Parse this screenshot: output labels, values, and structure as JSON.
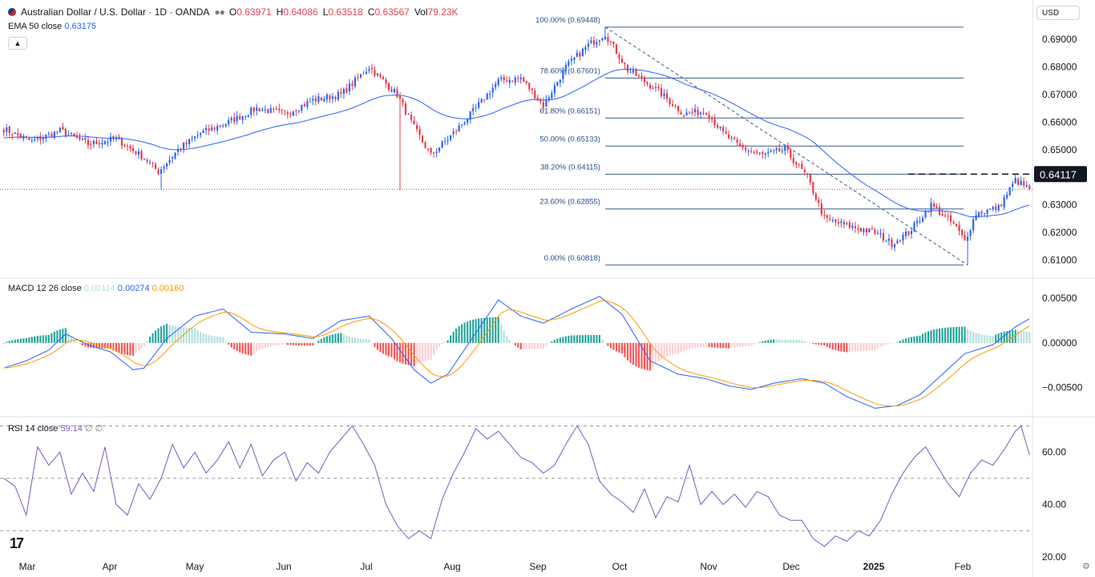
{
  "header": {
    "symbol": "Australian Dollar / U.S. Dollar · 1D · OANDA",
    "o_label": "O",
    "o": "0.63971",
    "h_label": "H",
    "h": "0.64086",
    "l_label": "L",
    "l": "0.63518",
    "c_label": "C",
    "c": "0.63567",
    "vol_label": "Vol",
    "vol": "79.23K"
  },
  "ema_legend": {
    "label": "EMA 50 close",
    "value": "0.63175"
  },
  "macd_legend": {
    "label": "MACD 12 26 close",
    "hist": "0.00114",
    "macd": "0.00274",
    "signal": "0.00160"
  },
  "rsi_legend": {
    "label": "RSI 14 close",
    "value": "59.14",
    "flags": "∅ ∅"
  },
  "currency_button": "USD",
  "price_tag": "0.64117",
  "colors": {
    "up": "#2962ff",
    "down": "#f23645",
    "ema": "#2962ff",
    "macd": "#2962ff",
    "signal": "#ff9800",
    "hist_up_strong": "#26a69a",
    "hist_up_weak": "#b2dfdb",
    "hist_down_strong": "#ff5252",
    "hist_down_weak": "#ffcdd2",
    "rsi": "#7e57c2"
  },
  "chart_data": {
    "type": "line",
    "x_axis_labels": [
      "Mar",
      "Apr",
      "May",
      "Jun",
      "Jul",
      "Aug",
      "Sep",
      "Oct",
      "Nov",
      "Dec",
      "2025",
      "Feb"
    ],
    "price_panel": {
      "y_ticks": [
        "0.69000",
        "0.68000",
        "0.67000",
        "0.66000",
        "0.65000",
        "0.64000",
        "0.63000",
        "0.62000",
        "0.61000"
      ],
      "ylim": [
        0.6055,
        0.6985
      ],
      "close_anchors": [
        [
          0,
          0.6575
        ],
        [
          10,
          0.653
        ],
        [
          20,
          0.657
        ],
        [
          30,
          0.652
        ],
        [
          40,
          0.654
        ],
        [
          50,
          0.647
        ],
        [
          55,
          0.642
        ],
        [
          62,
          0.65
        ],
        [
          70,
          0.656
        ],
        [
          80,
          0.66
        ],
        [
          90,
          0.665
        ],
        [
          100,
          0.663
        ],
        [
          110,
          0.668
        ],
        [
          120,
          0.67
        ],
        [
          130,
          0.68
        ],
        [
          140,
          0.67
        ],
        [
          146,
          0.658
        ],
        [
          152,
          0.648
        ],
        [
          160,
          0.656
        ],
        [
          168,
          0.665
        ],
        [
          176,
          0.675
        ],
        [
          184,
          0.676
        ],
        [
          192,
          0.666
        ],
        [
          200,
          0.68
        ],
        [
          208,
          0.688
        ],
        [
          214,
          0.692
        ],
        [
          222,
          0.679
        ],
        [
          232,
          0.672
        ],
        [
          242,
          0.663
        ],
        [
          250,
          0.664
        ],
        [
          256,
          0.656
        ],
        [
          262,
          0.651
        ],
        [
          270,
          0.648
        ],
        [
          278,
          0.65
        ],
        [
          286,
          0.64
        ],
        [
          292,
          0.625
        ],
        [
          300,
          0.6225
        ],
        [
          310,
          0.62
        ],
        [
          316,
          0.616
        ],
        [
          322,
          0.62
        ],
        [
          330,
          0.63
        ],
        [
          338,
          0.623
        ],
        [
          342,
          0.617
        ],
        [
          346,
          0.627
        ],
        [
          354,
          0.629
        ],
        [
          360,
          0.639
        ],
        [
          365,
          0.6357
        ]
      ],
      "ema50": {
        "name": "EMA 50 close",
        "last": 0.63175
      },
      "fibonacci": [
        {
          "label": "100.00%",
          "value": "(0.69448)",
          "price": 0.69448
        },
        {
          "label": "78.60%",
          "value": "(0.67601)",
          "price": 0.67601
        },
        {
          "label": "61.80%",
          "value": "(0.66151)",
          "price": 0.66151
        },
        {
          "label": "50.00%",
          "value": "(0.65133)",
          "price": 0.65133
        },
        {
          "label": "38.20%",
          "value": "(0.64115)",
          "price": 0.64115
        },
        {
          "label": "23.60%",
          "value": "(0.62855)",
          "price": 0.62855
        },
        {
          "label": "0.00%",
          "value": "(0.60818)",
          "price": 0.60818
        }
      ],
      "resistance": 0.64117,
      "current_price": 0.63567
    },
    "macd_panel": {
      "y_ticks": [
        "0.00500",
        "0.00000",
        "−0.00500"
      ],
      "ylim": [
        -0.0078,
        0.0068
      ],
      "macd_anchors": [
        [
          0,
          -0.0028
        ],
        [
          8,
          -0.002
        ],
        [
          16,
          -0.0008
        ],
        [
          22,
          0.001
        ],
        [
          30,
          -0.0002
        ],
        [
          38,
          -0.001
        ],
        [
          46,
          -0.003
        ],
        [
          50,
          -0.0028
        ],
        [
          58,
          0.0005
        ],
        [
          68,
          0.003
        ],
        [
          78,
          0.0038
        ],
        [
          88,
          0.0012
        ],
        [
          100,
          0.001
        ],
        [
          110,
          0.0005
        ],
        [
          120,
          0.0025
        ],
        [
          130,
          0.003
        ],
        [
          138,
          0.0005
        ],
        [
          146,
          -0.003
        ],
        [
          152,
          -0.0045
        ],
        [
          158,
          -0.0035
        ],
        [
          166,
          0.0002
        ],
        [
          176,
          0.0048
        ],
        [
          184,
          0.003
        ],
        [
          192,
          0.0022
        ],
        [
          202,
          0.0038
        ],
        [
          212,
          0.0052
        ],
        [
          220,
          0.0032
        ],
        [
          230,
          -0.002
        ],
        [
          240,
          -0.0035
        ],
        [
          250,
          -0.004
        ],
        [
          258,
          -0.0048
        ],
        [
          266,
          -0.0052
        ],
        [
          274,
          -0.0045
        ],
        [
          284,
          -0.004
        ],
        [
          292,
          -0.0045
        ],
        [
          300,
          -0.006
        ],
        [
          310,
          -0.0073
        ],
        [
          318,
          -0.007
        ],
        [
          326,
          -0.0058
        ],
        [
          334,
          -0.0035
        ],
        [
          342,
          -0.0012
        ],
        [
          352,
          -0.0002
        ],
        [
          360,
          0.0018
        ],
        [
          365,
          0.0027
        ]
      ]
    },
    "rsi_panel": {
      "y_ticks": [
        "60.00",
        "40.00",
        "20.00"
      ],
      "ylim": [
        20,
        72
      ],
      "levels": [
        70,
        50,
        30
      ],
      "rsi_anchors": [
        [
          0,
          50
        ],
        [
          4,
          47
        ],
        [
          8,
          36
        ],
        [
          12,
          62
        ],
        [
          16,
          55
        ],
        [
          20,
          60
        ],
        [
          24,
          44
        ],
        [
          28,
          52
        ],
        [
          32,
          45
        ],
        [
          36,
          62
        ],
        [
          40,
          40
        ],
        [
          44,
          36
        ],
        [
          48,
          48
        ],
        [
          52,
          42
        ],
        [
          56,
          50
        ],
        [
          60,
          63
        ],
        [
          64,
          54
        ],
        [
          68,
          60
        ],
        [
          72,
          52
        ],
        [
          76,
          57
        ],
        [
          80,
          64
        ],
        [
          84,
          54
        ],
        [
          88,
          63
        ],
        [
          92,
          51
        ],
        [
          96,
          57
        ],
        [
          100,
          60
        ],
        [
          104,
          49
        ],
        [
          108,
          56
        ],
        [
          112,
          52
        ],
        [
          116,
          60
        ],
        [
          120,
          65
        ],
        [
          124,
          70
        ],
        [
          128,
          63
        ],
        [
          132,
          55
        ],
        [
          136,
          40
        ],
        [
          140,
          32
        ],
        [
          144,
          27
        ],
        [
          148,
          30
        ],
        [
          152,
          27
        ],
        [
          156,
          42
        ],
        [
          160,
          52
        ],
        [
          164,
          60
        ],
        [
          168,
          69
        ],
        [
          172,
          65
        ],
        [
          176,
          68
        ],
        [
          180,
          63
        ],
        [
          184,
          58
        ],
        [
          188,
          56
        ],
        [
          192,
          52
        ],
        [
          196,
          55
        ],
        [
          200,
          63
        ],
        [
          204,
          70
        ],
        [
          208,
          63
        ],
        [
          212,
          49
        ],
        [
          216,
          44
        ],
        [
          220,
          41
        ],
        [
          224,
          37
        ],
        [
          228,
          46
        ],
        [
          232,
          35
        ],
        [
          236,
          43
        ],
        [
          240,
          41
        ],
        [
          244,
          55
        ],
        [
          248,
          40
        ],
        [
          252,
          45
        ],
        [
          256,
          40
        ],
        [
          260,
          44
        ],
        [
          264,
          39
        ],
        [
          268,
          45
        ],
        [
          272,
          43
        ],
        [
          276,
          36
        ],
        [
          280,
          34
        ],
        [
          284,
          34
        ],
        [
          288,
          27
        ],
        [
          292,
          24
        ],
        [
          296,
          28
        ],
        [
          300,
          26
        ],
        [
          304,
          30
        ],
        [
          308,
          28
        ],
        [
          312,
          34
        ],
        [
          316,
          44
        ],
        [
          320,
          52
        ],
        [
          324,
          58
        ],
        [
          328,
          62
        ],
        [
          332,
          55
        ],
        [
          336,
          48
        ],
        [
          340,
          43
        ],
        [
          344,
          52
        ],
        [
          348,
          57
        ],
        [
          352,
          55
        ],
        [
          356,
          61
        ],
        [
          360,
          68
        ],
        [
          362,
          70
        ],
        [
          365,
          59
        ]
      ]
    }
  }
}
